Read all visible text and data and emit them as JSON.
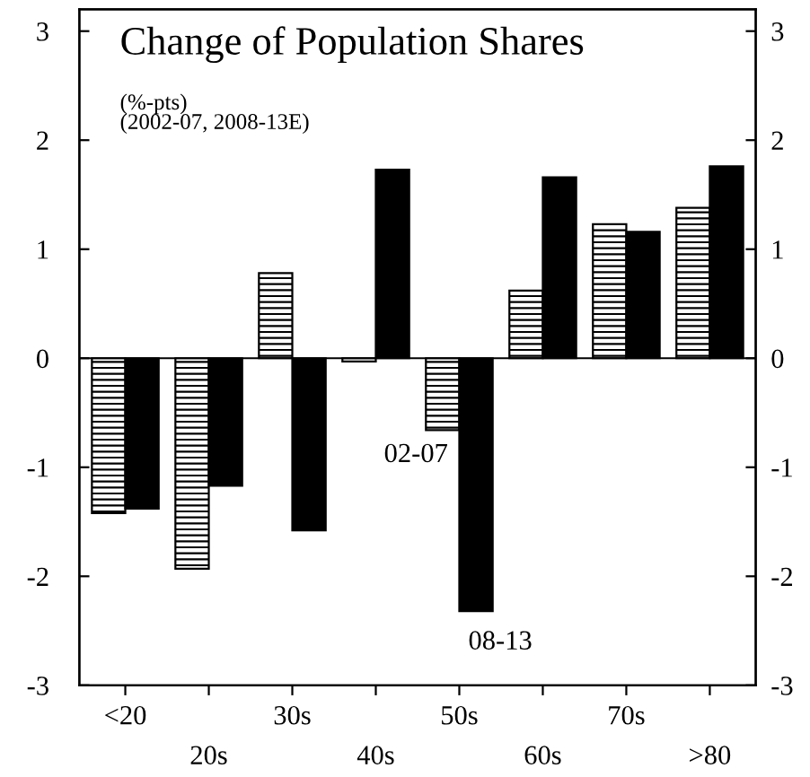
{
  "chart_data": {
    "type": "bar",
    "title": "Change of Population Shares",
    "subtitle": "(%-pts)\n(2002-07, 2008-13E)",
    "categories": [
      "<20",
      "20s",
      "30s",
      "40s",
      "50s",
      "60s",
      "70s",
      ">80"
    ],
    "series": [
      {
        "color": "#000000",
        "values": [
          -1.42,
          -1.93,
          0.78,
          -0.03,
          -0.66,
          0.62,
          1.23,
          1.38
        ]
      },
      {
        "color": "#000000",
        "values": [
          -1.38,
          -1.17,
          -1.58,
          1.73,
          -2.32,
          1.66,
          1.16,
          1.76
        ]
      }
    ],
    "annotations": [
      "02-07",
      "08-13"
    ],
    "ref_lines": [
      {
        "axis": "y",
        "value": 0,
        "color": "#000000"
      }
    ],
    "ylim": [
      -3,
      3.2
    ],
    "yticks": [
      -3,
      -2,
      -1,
      0,
      1,
      2,
      3
    ],
    "y2lim": [
      -3,
      3.2
    ],
    "y2ticks": [
      -3,
      -2,
      -1,
      0,
      1,
      2,
      3
    ],
    "grid": false,
    "legend": false
  }
}
